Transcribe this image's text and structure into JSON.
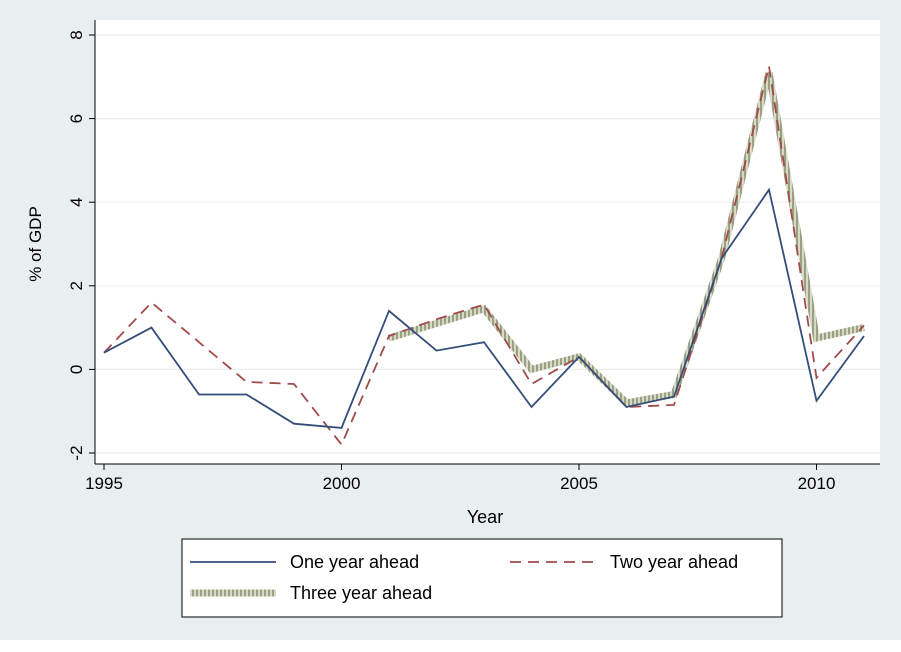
{
  "chart_data": {
    "type": "line",
    "xlabel": "Year",
    "ylabel": "% of GDP",
    "xlim": [
      1995,
      2011
    ],
    "ylim": [
      -2,
      8
    ],
    "x_ticks": [
      "1995",
      "2000",
      "2005",
      "2010"
    ],
    "y_ticks": [
      "-2",
      "0",
      "2",
      "4",
      "6",
      "8"
    ],
    "grid": true,
    "legend_position": "bottom",
    "colors": {
      "background": "#e9eef0",
      "plot_area": "#ffffff",
      "gridline": "#e9eef0"
    },
    "x": [
      1995,
      1996,
      1997,
      1998,
      1999,
      2000,
      2001,
      2002,
      2003,
      2004,
      2005,
      2006,
      2007,
      2008,
      2009,
      2010,
      2011
    ],
    "series": [
      {
        "name": "One year ahead",
        "style": "solid",
        "color": "#344e79",
        "values": [
          0.4,
          1.0,
          -0.6,
          -0.6,
          -1.3,
          -1.4,
          1.4,
          0.45,
          0.65,
          -0.9,
          0.3,
          -0.9,
          -0.65,
          2.65,
          4.3,
          -0.75,
          0.8
        ]
      },
      {
        "name": "Two year ahead",
        "style": "dashed",
        "color": "#a24a4a",
        "values": [
          0.4,
          1.6,
          0.65,
          -0.3,
          -0.35,
          -1.8,
          0.8,
          1.2,
          1.55,
          -0.35,
          0.3,
          -0.9,
          -0.85,
          2.65,
          7.25,
          -0.2,
          1.05
        ]
      },
      {
        "name": "Three year ahead",
        "style": "hatched",
        "color": "#9aa082",
        "values": [
          null,
          null,
          null,
          null,
          null,
          null,
          0.75,
          1.1,
          1.45,
          0.0,
          0.3,
          -0.8,
          -0.6,
          2.65,
          7.1,
          0.75,
          1.0
        ]
      }
    ]
  }
}
